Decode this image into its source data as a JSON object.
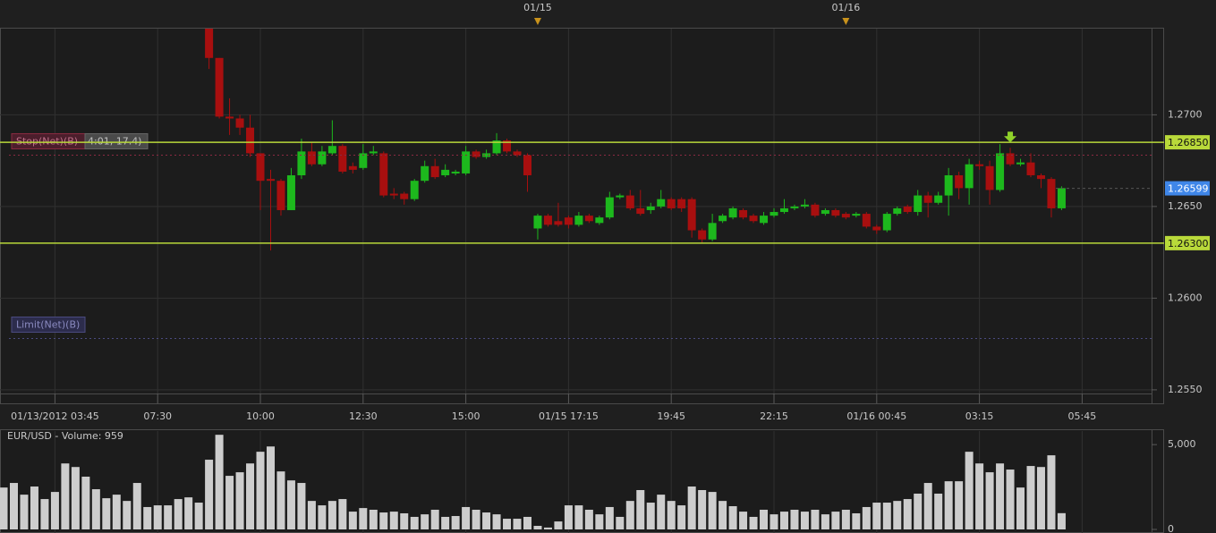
{
  "chart_data": [
    {
      "type": "candlestick",
      "xlim": [
        -0.35,
        111.76
      ],
      "xticks": [
        {
          "value": 5,
          "label": "01/13/2012 03:45"
        },
        {
          "value": 15,
          "label": "07:30"
        },
        {
          "value": 25,
          "label": "10:00"
        },
        {
          "value": 35,
          "label": "12:30"
        },
        {
          "value": 45,
          "label": "15:00"
        },
        {
          "value": 55,
          "label": "01/15 17:15"
        },
        {
          "value": 65,
          "label": "19:45"
        },
        {
          "value": 75,
          "label": "22:15"
        },
        {
          "value": 85,
          "label": "01/16 00:45"
        },
        {
          "value": 95,
          "label": "03:15"
        },
        {
          "value": 105,
          "label": "05:45"
        }
      ],
      "day_markers": [
        {
          "value": 52,
          "label": "01/15"
        },
        {
          "value": 82,
          "label": "01/16"
        }
      ],
      "ylim": [
        1.2548,
        1.2747
      ],
      "yticks": [
        {
          "value": 1.255,
          "label": "1.2550"
        },
        {
          "value": 1.26,
          "label": "1.2600"
        },
        {
          "value": 1.265,
          "label": "1.2650"
        },
        {
          "value": 1.27,
          "label": "1.2700"
        }
      ],
      "grid": true,
      "up_color": "#1db81d",
      "down_color": "#a80f0f",
      "open": [
        null,
        null,
        null,
        null,
        null,
        null,
        null,
        null,
        null,
        null,
        null,
        null,
        null,
        null,
        null,
        null,
        null,
        null,
        null,
        null,
        1.2748,
        1.2731,
        1.2699,
        1.2698,
        1.2693,
        1.2679,
        1.2665,
        1.2664,
        1.2648,
        1.2667,
        1.268,
        1.2673,
        1.2679,
        1.2683,
        1.2672,
        1.2671,
        1.2679,
        1.2679,
        1.2657,
        1.2657,
        1.2654,
        1.2664,
        1.2672,
        1.2667,
        1.2668,
        1.2668,
        1.268,
        1.2677,
        1.2679,
        1.2686,
        1.268,
        1.2678,
        1.2638,
        1.2645,
        1.2642,
        1.2644,
        1.264,
        1.2645,
        1.2641,
        1.2644,
        1.2655,
        1.2656,
        1.2649,
        1.2648,
        1.265,
        1.2654,
        1.2654,
        1.2654,
        1.2637,
        1.2632,
        1.2642,
        1.2644,
        1.2648,
        1.2645,
        1.2641,
        1.2645,
        1.2647,
        1.2649,
        1.265,
        1.2651,
        1.2646,
        1.2648,
        1.2646,
        1.2645,
        1.2646,
        1.2639,
        1.2637,
        1.2646,
        1.265,
        1.2647,
        1.2656,
        1.2652,
        1.2656,
        1.2667,
        1.266,
        1.2673,
        1.2672,
        1.2659,
        1.2679,
        1.2673,
        1.2674,
        1.2667,
        1.2665,
        1.2649
      ],
      "high": [
        null,
        null,
        null,
        null,
        null,
        null,
        null,
        null,
        null,
        null,
        null,
        null,
        null,
        null,
        null,
        null,
        null,
        null,
        null,
        null,
        1.2748,
        1.2731,
        1.2709,
        1.27,
        1.27,
        1.2679,
        1.267,
        1.2665,
        1.2671,
        1.2687,
        1.2685,
        1.2683,
        1.2697,
        1.2684,
        1.2674,
        1.2684,
        1.2683,
        1.268,
        1.266,
        1.2658,
        1.2665,
        1.2675,
        1.2676,
        1.2673,
        1.267,
        1.2683,
        1.2681,
        1.2681,
        1.269,
        1.2687,
        1.2681,
        1.2679,
        1.2646,
        1.2646,
        1.2652,
        1.2645,
        1.2647,
        1.2646,
        1.2645,
        1.2658,
        1.2657,
        1.2659,
        1.2659,
        1.2652,
        1.2659,
        1.2655,
        1.2655,
        1.2655,
        1.2638,
        1.2646,
        1.2646,
        1.265,
        1.2649,
        1.2646,
        1.2647,
        1.2649,
        1.2654,
        1.2651,
        1.2654,
        1.2652,
        1.2649,
        1.2649,
        1.2647,
        1.2647,
        1.2647,
        1.264,
        1.2647,
        1.265,
        1.2651,
        1.2659,
        1.2658,
        1.2658,
        1.2671,
        1.2669,
        1.2676,
        1.2675,
        1.2675,
        1.2684,
        1.2682,
        1.2676,
        1.2679,
        1.2668,
        1.2666,
        1.2661
      ],
      "low": [
        null,
        null,
        null,
        null,
        null,
        null,
        null,
        null,
        null,
        null,
        null,
        null,
        null,
        null,
        null,
        null,
        null,
        null,
        null,
        null,
        1.2725,
        1.2698,
        1.2689,
        1.2689,
        1.2677,
        1.2648,
        1.2626,
        1.2645,
        1.2648,
        1.2665,
        1.2672,
        1.2672,
        1.2678,
        1.2668,
        1.2668,
        1.267,
        1.2678,
        1.2655,
        1.2654,
        1.2651,
        1.2653,
        1.2663,
        1.2665,
        1.2666,
        1.2667,
        1.2667,
        1.2676,
        1.2676,
        1.2678,
        1.2679,
        1.2677,
        1.2658,
        1.2632,
        1.2639,
        1.2639,
        1.2638,
        1.2639,
        1.2641,
        1.264,
        1.2643,
        1.2654,
        1.2648,
        1.2645,
        1.2646,
        1.2649,
        1.2648,
        1.2647,
        1.2633,
        1.263,
        1.2631,
        1.2641,
        1.2643,
        1.2643,
        1.2641,
        1.264,
        1.2644,
        1.2646,
        1.2648,
        1.2649,
        1.2644,
        1.2645,
        1.2644,
        1.2643,
        1.2644,
        1.2638,
        1.2635,
        1.2636,
        1.2645,
        1.2646,
        1.2645,
        1.2644,
        1.2651,
        1.2645,
        1.2654,
        1.2651,
        1.267,
        1.2651,
        1.2658,
        1.2672,
        1.2672,
        1.2666,
        1.266,
        1.2644,
        1.2648
      ],
      "close": [
        null,
        null,
        null,
        null,
        null,
        null,
        null,
        null,
        null,
        null,
        null,
        null,
        null,
        null,
        null,
        null,
        null,
        null,
        null,
        null,
        1.2731,
        1.2699,
        1.2698,
        1.2693,
        1.2679,
        1.2664,
        1.2664,
        1.2648,
        1.2667,
        1.268,
        1.2673,
        1.268,
        1.2683,
        1.2669,
        1.267,
        1.2679,
        1.268,
        1.2656,
        1.2656,
        1.2654,
        1.2664,
        1.2672,
        1.2666,
        1.267,
        1.2669,
        1.268,
        1.2677,
        1.2679,
        1.2686,
        1.268,
        1.2678,
        1.2667,
        1.2645,
        1.264,
        1.264,
        1.264,
        1.2645,
        1.2642,
        1.2644,
        1.2655,
        1.2656,
        1.2649,
        1.2646,
        1.265,
        1.2654,
        1.2649,
        1.2649,
        1.2637,
        1.2632,
        1.2641,
        1.2645,
        1.2649,
        1.2644,
        1.2642,
        1.2645,
        1.2647,
        1.2649,
        1.265,
        1.2651,
        1.2645,
        1.2648,
        1.2645,
        1.2644,
        1.2646,
        1.2639,
        1.2637,
        1.2646,
        1.2649,
        1.2647,
        1.2656,
        1.2652,
        1.2656,
        1.2667,
        1.266,
        1.2673,
        1.2672,
        1.2659,
        1.2679,
        1.2673,
        1.2674,
        1.2667,
        1.2665,
        1.2649,
        1.266
      ],
      "levels": [
        {
          "value": 1.2685,
          "label": "1.26850"
        },
        {
          "value": 1.263,
          "label": "1.26300"
        }
      ],
      "level_color": "#b9d93a",
      "last_price": {
        "value": 1.26599,
        "label": "1.26599"
      },
      "last_price_color": "#3f86e8",
      "orders": [
        {
          "name": "Stop(Net)(B)",
          "value": 1.2678,
          "color": "#8a2a42"
        },
        {
          "name": "Limit(Net)(B)",
          "value": 1.2578,
          "color": "#4b4b80"
        }
      ],
      "stop_detail": "4:01, 17.4)",
      "signals": [
        98
      ]
    },
    {
      "type": "bar",
      "title": "EUR/USD - Volume: 959",
      "xlim": [
        -0.35,
        111.76
      ],
      "ylim": [
        0,
        5800
      ],
      "yticks": [
        0,
        {
          "value": 5000,
          "label": "5,000"
        }
      ],
      "color": "#cdcdcd",
      "values": [
        2470,
        2740,
        2050,
        2530,
        1790,
        2210,
        3890,
        3680,
        3110,
        2370,
        1840,
        2050,
        1680,
        2740,
        1320,
        1420,
        1420,
        1790,
        1890,
        1580,
        4110,
        5580,
        3160,
        3370,
        3890,
        4580,
        4890,
        3420,
        2890,
        2740,
        1680,
        1420,
        1680,
        1790,
        1050,
        1260,
        1160,
        1000,
        1050,
        950,
        740,
        890,
        1160,
        740,
        790,
        1320,
        1160,
        1000,
        890,
        630,
        630,
        740,
        210,
        110,
        470,
        1420,
        1420,
        1160,
        890,
        1320,
        740,
        1680,
        2320,
        1580,
        2050,
        1680,
        1420,
        2530,
        2320,
        2210,
        1680,
        1370,
        1050,
        740,
        1160,
        890,
        1050,
        1160,
        1050,
        1160,
        890,
        1050,
        1160,
        950,
        1320,
        1580,
        1580,
        1680,
        1790,
        2110,
        2740,
        2110,
        2840,
        2840,
        4580,
        3890,
        3370,
        3890,
        3530,
        2470,
        3740,
        3680,
        4370,
        959
      ]
    }
  ]
}
